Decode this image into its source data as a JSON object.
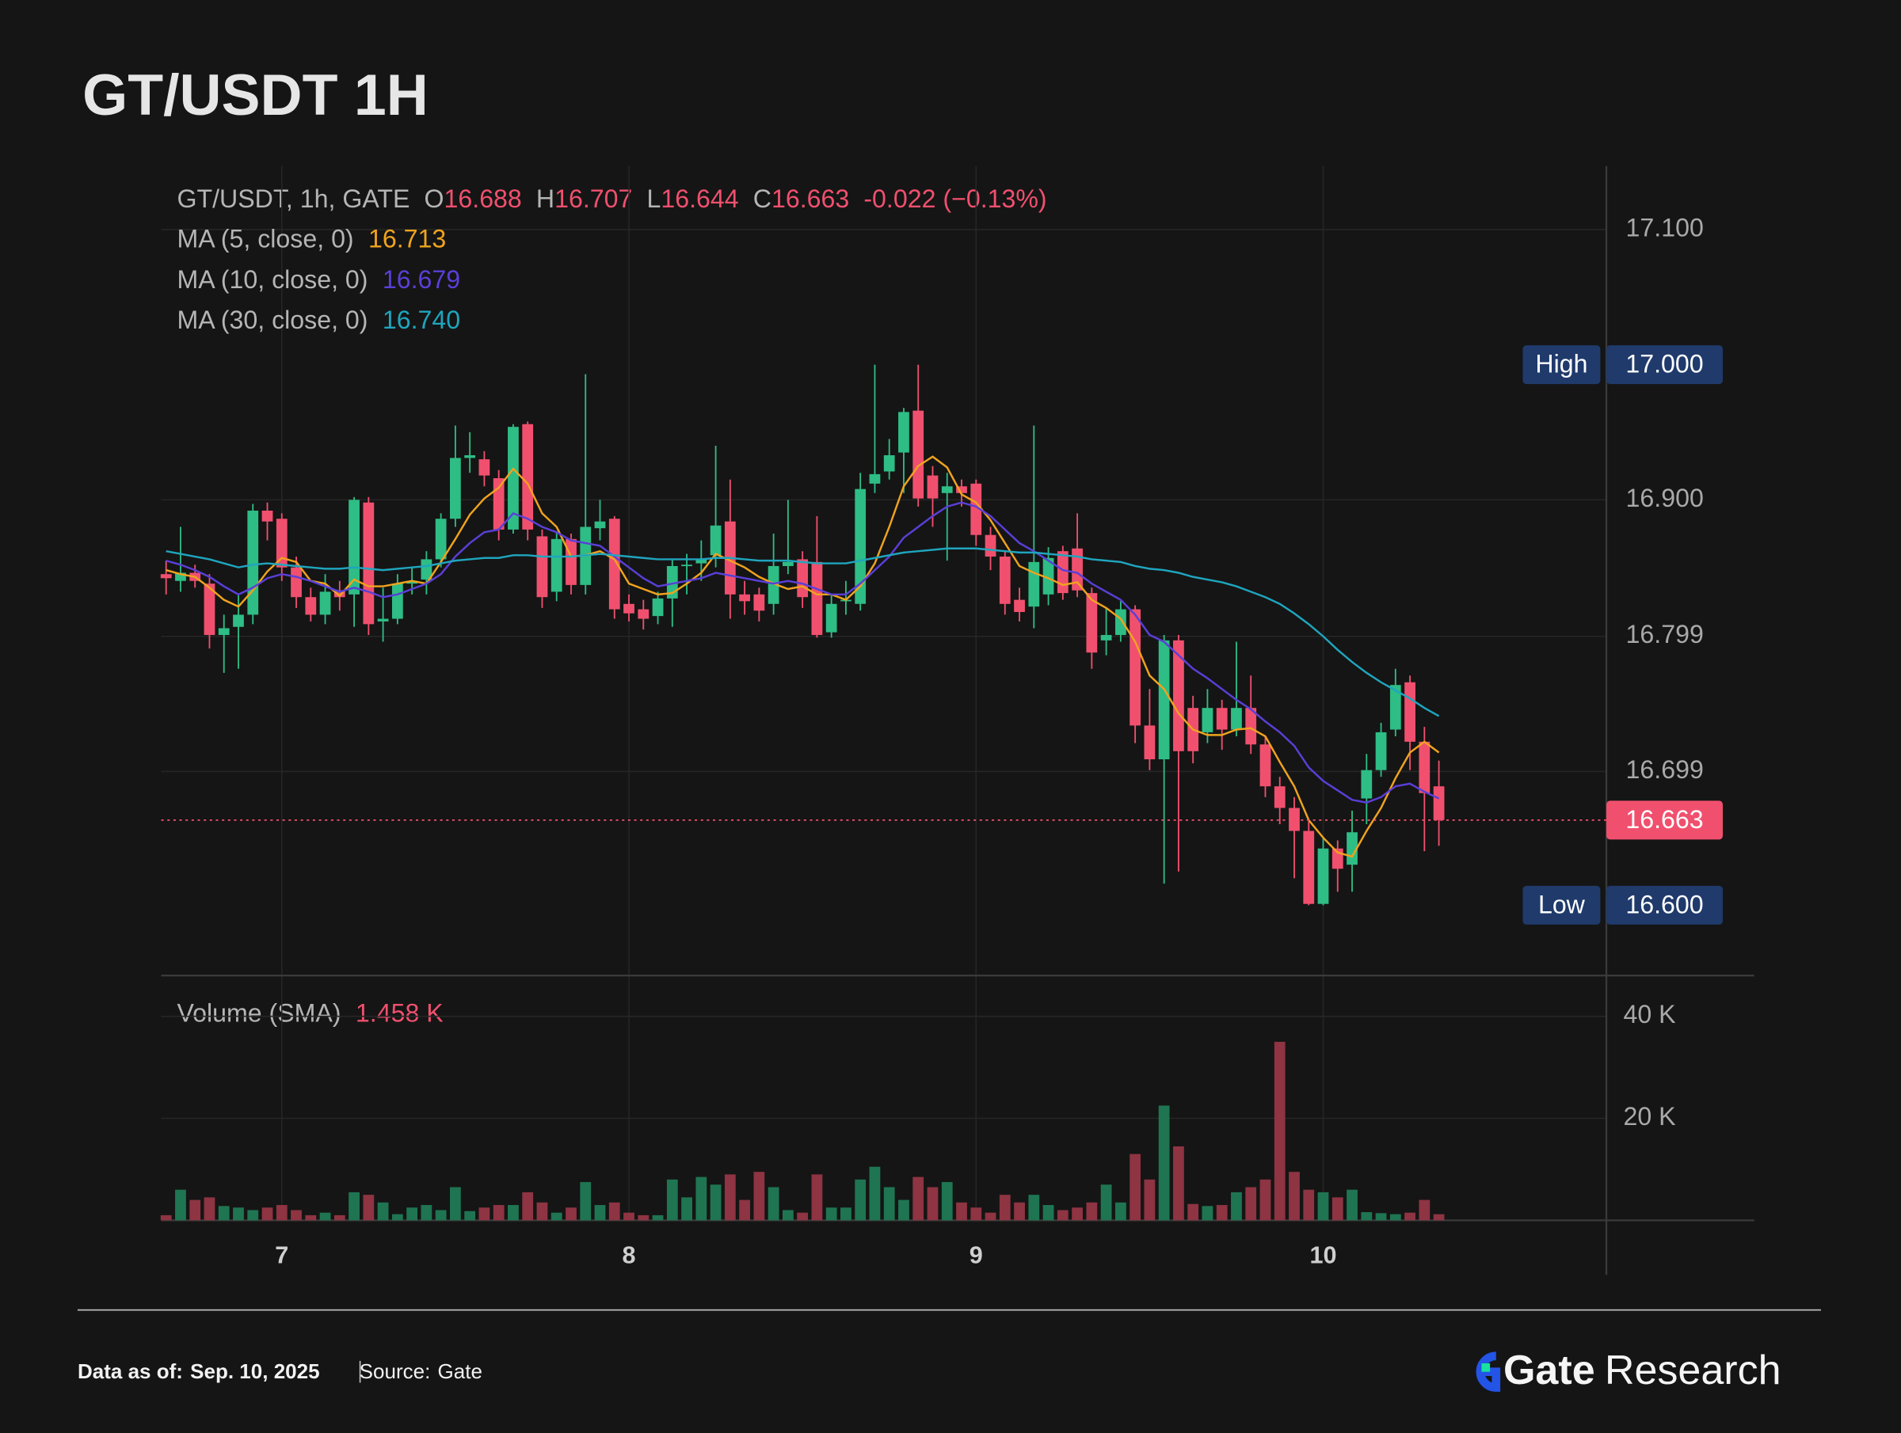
{
  "chart_data": {
    "type": "candlestick",
    "title": "GT/USDT 1H",
    "header": {
      "symbol": "GT/USDT, 1h, GATE",
      "ohlc_labels": [
        "O",
        "H",
        "L",
        "C"
      ],
      "change_label": "-0.022 (−0.13%)"
    },
    "categories": [
      null,
      null,
      null,
      null,
      null,
      null,
      null,
      null,
      "7",
      null,
      null,
      null,
      null,
      null,
      null,
      null,
      null,
      null,
      null,
      null,
      null,
      null,
      null,
      null,
      null,
      null,
      null,
      null,
      null,
      null,
      null,
      null,
      "8",
      null,
      null,
      null,
      null,
      null,
      null,
      null,
      null,
      null,
      null,
      null,
      null,
      null,
      null,
      null,
      null,
      null,
      null,
      null,
      null,
      null,
      null,
      null,
      "9",
      null,
      null,
      null,
      null,
      null,
      null,
      null,
      null,
      null,
      null,
      null,
      null,
      null,
      null,
      null,
      null,
      null,
      null,
      null,
      null,
      null,
      null,
      null,
      "10",
      null,
      null,
      null,
      null,
      null,
      null,
      null,
      null
    ],
    "open": [
      16.845,
      16.84,
      16.846,
      16.838,
      16.8,
      16.806,
      16.815,
      16.892,
      16.886,
      16.85,
      16.828,
      16.815,
      16.833,
      16.83,
      16.898,
      16.81,
      16.812,
      16.838,
      16.841,
      16.856,
      16.886,
      16.931,
      16.93,
      16.916,
      16.878,
      16.956,
      16.873,
      16.832,
      16.871,
      16.837,
      16.879,
      16.886,
      16.823,
      16.819,
      16.814,
      16.827,
      16.852,
      16.853,
      16.859,
      16.884,
      16.83,
      16.83,
      16.823,
      16.851,
      16.856,
      16.854,
      16.802,
      16.825,
      16.823,
      16.912,
      16.921,
      16.935,
      16.966,
      16.918,
      16.905,
      16.91,
      16.912,
      16.874,
      16.858,
      16.826,
      16.821,
      16.83,
      16.862,
      16.864,
      16.831,
      16.796,
      16.8,
      16.819,
      16.733,
      16.708,
      16.796,
      16.746,
      16.728,
      16.746,
      16.73,
      16.746,
      16.719,
      16.688,
      16.672,
      16.655,
      16.601,
      16.642,
      16.63,
      16.679,
      16.7,
      16.73,
      16.765,
      16.721,
      16.688
    ],
    "high": [
      16.855,
      16.88,
      16.852,
      16.845,
      16.815,
      16.83,
      16.897,
      16.898,
      16.89,
      16.858,
      16.835,
      16.845,
      16.84,
      16.902,
      16.902,
      16.835,
      16.845,
      16.85,
      16.862,
      16.89,
      16.955,
      16.95,
      16.936,
      16.922,
      16.956,
      16.958,
      16.878,
      16.876,
      16.875,
      16.993,
      16.9,
      16.888,
      16.83,
      16.826,
      16.832,
      16.856,
      16.86,
      16.87,
      16.94,
      16.915,
      16.84,
      16.835,
      16.875,
      16.9,
      16.862,
      16.888,
      16.83,
      16.84,
      16.92,
      17.0,
      16.945,
      16.968,
      17.0,
      16.925,
      16.92,
      16.915,
      16.915,
      16.88,
      16.862,
      16.835,
      16.955,
      16.865,
      16.866,
      16.89,
      16.835,
      16.82,
      16.825,
      16.822,
      16.76,
      16.8,
      16.8,
      16.755,
      16.76,
      16.752,
      16.795,
      16.77,
      16.725,
      16.695,
      16.68,
      16.662,
      16.65,
      16.648,
      16.67,
      16.712,
      16.735,
      16.775,
      16.77,
      16.732,
      16.707
    ],
    "low": [
      16.83,
      16.832,
      16.835,
      16.79,
      16.772,
      16.775,
      16.808,
      16.87,
      16.84,
      16.82,
      16.81,
      16.808,
      16.818,
      16.806,
      16.8,
      16.795,
      16.808,
      16.83,
      16.83,
      16.85,
      16.88,
      16.92,
      16.91,
      16.87,
      16.875,
      16.87,
      16.82,
      16.825,
      16.83,
      16.83,
      16.87,
      16.812,
      16.81,
      16.804,
      16.808,
      16.806,
      16.83,
      16.84,
      16.85,
      16.812,
      16.815,
      16.81,
      16.815,
      16.845,
      16.82,
      16.798,
      16.798,
      16.815,
      16.818,
      16.905,
      16.915,
      16.905,
      16.895,
      16.88,
      16.855,
      16.895,
      16.866,
      16.848,
      16.815,
      16.81,
      16.805,
      16.822,
      16.826,
      16.828,
      16.775,
      16.785,
      16.795,
      16.72,
      16.7,
      16.616,
      16.625,
      16.705,
      16.72,
      16.715,
      16.725,
      16.712,
      16.68,
      16.66,
      16.62,
      16.6,
      16.6,
      16.61,
      16.61,
      16.66,
      16.695,
      16.725,
      16.7,
      16.64,
      16.644
    ],
    "close": [
      16.842,
      16.846,
      16.84,
      16.8,
      16.805,
      16.815,
      16.892,
      16.884,
      16.85,
      16.828,
      16.815,
      16.832,
      16.828,
      16.9,
      16.808,
      16.812,
      16.838,
      16.84,
      16.856,
      16.886,
      16.931,
      16.933,
      16.918,
      16.878,
      16.954,
      16.878,
      16.828,
      16.871,
      16.837,
      16.88,
      16.884,
      16.819,
      16.816,
      16.812,
      16.827,
      16.851,
      16.852,
      16.856,
      16.881,
      16.83,
      16.825,
      16.818,
      16.851,
      16.854,
      16.828,
      16.8,
      16.823,
      16.826,
      16.908,
      16.919,
      16.933,
      16.965,
      16.901,
      16.901,
      16.91,
      16.905,
      16.874,
      16.858,
      16.823,
      16.817,
      16.854,
      16.857,
      16.831,
      16.833,
      16.787,
      16.8,
      16.819,
      16.733,
      16.708,
      16.796,
      16.714,
      16.714,
      16.746,
      16.73,
      16.746,
      16.719,
      16.688,
      16.672,
      16.655,
      16.601,
      16.642,
      16.627,
      16.654,
      16.7,
      16.728,
      16.763,
      16.721,
      16.683,
      16.663
    ],
    "up_color": "#2ebd85",
    "down_color": "#f0506e",
    "series": [
      {
        "name": "MA (5, close, 0)",
        "color": "#f0a31e",
        "last_label": "16.713",
        "values": [
          16.848,
          16.845,
          16.843,
          16.835,
          16.826,
          16.821,
          16.833,
          16.847,
          16.857,
          16.854,
          16.84,
          16.838,
          16.829,
          16.841,
          16.836,
          16.836,
          16.838,
          16.84,
          16.838,
          16.854,
          16.871,
          16.889,
          16.901,
          16.909,
          16.923,
          16.912,
          16.89,
          16.88,
          16.858,
          16.859,
          16.862,
          16.856,
          16.838,
          16.834,
          16.83,
          16.831,
          16.838,
          16.846,
          16.86,
          16.855,
          16.85,
          16.843,
          16.838,
          16.834,
          16.836,
          16.83,
          16.83,
          16.826,
          16.836,
          16.853,
          16.88,
          16.91,
          16.925,
          16.932,
          16.924,
          16.904,
          16.898,
          16.885,
          16.868,
          16.851,
          16.846,
          16.842,
          16.837,
          16.839,
          16.826,
          16.82,
          16.812,
          16.795,
          16.77,
          16.76,
          16.742,
          16.73,
          16.726,
          16.726,
          16.73,
          16.731,
          16.725,
          16.706,
          16.688,
          16.663,
          16.65,
          16.639,
          16.636,
          16.655,
          16.672,
          16.694,
          16.713,
          16.721,
          16.713
        ]
      },
      {
        "name": "MA (10, close, 0)",
        "color": "#5a3fd8",
        "last_label": "16.679",
        "values": [
          16.855,
          16.852,
          16.848,
          16.843,
          16.836,
          16.83,
          16.835,
          16.842,
          16.845,
          16.843,
          16.84,
          16.836,
          16.832,
          16.835,
          16.832,
          16.828,
          16.83,
          16.834,
          16.838,
          16.845,
          16.858,
          16.868,
          16.876,
          16.878,
          16.89,
          16.886,
          16.88,
          16.876,
          16.87,
          16.868,
          16.866,
          16.858,
          16.85,
          16.842,
          16.836,
          16.838,
          16.84,
          16.842,
          16.846,
          16.844,
          16.842,
          16.84,
          16.838,
          16.84,
          16.838,
          16.834,
          16.83,
          16.83,
          16.838,
          16.848,
          16.858,
          16.872,
          16.88,
          16.888,
          16.895,
          16.898,
          16.895,
          16.888,
          16.878,
          16.868,
          16.862,
          16.855,
          16.848,
          16.846,
          16.838,
          16.832,
          16.826,
          16.815,
          16.8,
          16.795,
          16.785,
          16.775,
          16.768,
          16.76,
          16.752,
          16.745,
          16.736,
          16.728,
          16.718,
          16.702,
          16.692,
          16.685,
          16.678,
          16.676,
          16.68,
          16.688,
          16.69,
          16.684,
          16.679
        ]
      },
      {
        "name": "MA (30, close, 0)",
        "color": "#1fa5be",
        "last_label": "16.740",
        "values": [
          16.862,
          16.86,
          16.858,
          16.856,
          16.853,
          16.85,
          16.852,
          16.853,
          16.852,
          16.851,
          16.85,
          16.849,
          16.849,
          16.85,
          16.849,
          16.848,
          16.849,
          16.85,
          16.851,
          16.853,
          16.855,
          16.856,
          16.857,
          16.857,
          16.859,
          16.859,
          16.858,
          16.858,
          16.858,
          16.859,
          16.86,
          16.859,
          16.858,
          16.857,
          16.856,
          16.856,
          16.856,
          16.856,
          16.857,
          16.857,
          16.856,
          16.855,
          16.855,
          16.855,
          16.854,
          16.853,
          16.853,
          16.853,
          16.855,
          16.857,
          16.859,
          16.861,
          16.862,
          16.863,
          16.864,
          16.864,
          16.864,
          16.863,
          16.862,
          16.861,
          16.861,
          16.86,
          16.859,
          16.858,
          16.856,
          16.855,
          16.854,
          16.851,
          16.849,
          16.848,
          16.846,
          16.843,
          16.841,
          16.839,
          16.836,
          16.832,
          16.828,
          16.823,
          16.816,
          16.808,
          16.799,
          16.789,
          16.78,
          16.772,
          16.765,
          16.759,
          16.753,
          16.746,
          16.74
        ]
      }
    ],
    "ylim": [
      16.548,
      17.147
    ],
    "yticks": [
      {
        "value": 17.1,
        "label": "17.100"
      },
      {
        "value": 16.9,
        "label": "16.900"
      },
      16.799,
      16.699
    ],
    "markers": [
      {
        "name": "High",
        "value": 17,
        "label": "17.000"
      },
      {
        "name": "Low",
        "value": 16.6,
        "label": "16.600"
      }
    ],
    "marker_color": "#1f3a6b",
    "grid": true,
    "volume": {
      "title": "Volume (SMA)",
      "sma_label": "1.458 K",
      "up_color": "#1f7552",
      "down_color": "#8e3442",
      "values": [
        1000,
        6000,
        4000,
        4500,
        2800,
        2500,
        2000,
        2500,
        3000,
        2000,
        1000,
        1500,
        1000,
        5500,
        5000,
        3500,
        1200,
        2500,
        3000,
        2000,
        6500,
        1800,
        2500,
        3000,
        3000,
        5500,
        3500,
        1500,
        2500,
        7500,
        3000,
        3500,
        1500,
        1000,
        1000,
        8000,
        4500,
        8500,
        7000,
        9000,
        4000,
        9500,
        6500,
        2000,
        1500,
        9000,
        2500,
        2500,
        8000,
        10500,
        6500,
        4000,
        8500,
        6500,
        7500,
        3500,
        2500,
        1500,
        5000,
        3500,
        5000,
        3000,
        2000,
        2500,
        3500,
        7000,
        3500,
        13000,
        8000,
        22500,
        14500,
        3200,
        2800,
        3000,
        5500,
        6500,
        8000,
        35000,
        9500,
        6000,
        5500,
        4500,
        6000,
        1600,
        1400,
        1200,
        1500,
        4000,
        1200
      ],
      "ylim": [
        0,
        48000
      ],
      "yticks": [
        {
          "value": 40000,
          "label": "40 K"
        },
        {
          "value": 20000,
          "label": "20 K"
        }
      ]
    }
  },
  "footer": {
    "date_label": "Data as of:",
    "date": "Sep. 10, 2025",
    "source_label": "Source:",
    "source": "Gate",
    "brand": "Gate",
    "brand_suffix": "Research"
  }
}
